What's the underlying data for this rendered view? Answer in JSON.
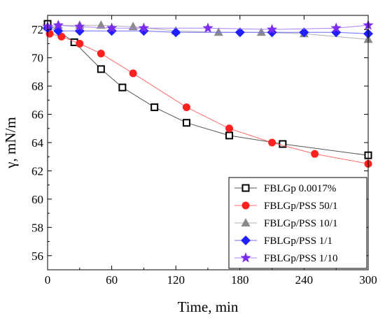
{
  "chart_data": {
    "type": "line",
    "xlabel": "Time, min",
    "ylabel": "γ, mN/m",
    "xlim": [
      0,
      300
    ],
    "ylim": [
      55,
      73
    ],
    "xticks": [
      0,
      60,
      120,
      180,
      240,
      300
    ],
    "yticks": [
      56,
      58,
      60,
      62,
      64,
      66,
      68,
      70,
      72
    ],
    "grid": false,
    "legend_position": "bottom-right",
    "series": [
      {
        "name": "FBLGp 0.0017%",
        "marker": "open-square",
        "color": "#000000",
        "line_color": "#555555",
        "x": [
          0,
          25,
          50,
          70,
          100,
          130,
          170,
          220,
          300
        ],
        "y": [
          72.4,
          71.1,
          69.2,
          67.9,
          66.5,
          65.4,
          64.5,
          63.9,
          63.1
        ]
      },
      {
        "name": "FBLGp/PSS 50/1",
        "marker": "circle",
        "color": "#ff2020",
        "line_color": "#ff6a6a",
        "x": [
          2,
          13,
          30,
          50,
          80,
          130,
          170,
          210,
          250,
          300
        ],
        "y": [
          71.7,
          71.5,
          71.0,
          70.3,
          68.9,
          66.5,
          65.0,
          64.0,
          63.2,
          62.5
        ]
      },
      {
        "name": "FBLGp/PSS 10/1",
        "marker": "triangle",
        "color": "#8a8a8a",
        "line_color": "#b0b0b0",
        "x": [
          0,
          10,
          30,
          50,
          80,
          120,
          160,
          200,
          240,
          300
        ],
        "y": [
          72.2,
          72.3,
          72.3,
          72.3,
          72.2,
          71.9,
          71.8,
          71.8,
          71.7,
          71.3
        ]
      },
      {
        "name": "FBLGp/PSS 1/1",
        "marker": "diamond",
        "color": "#1f1fff",
        "line_color": "#6a6aff",
        "x": [
          0,
          10,
          30,
          60,
          90,
          120,
          180,
          210,
          240,
          270,
          300
        ],
        "y": [
          72.1,
          71.9,
          71.9,
          71.9,
          71.9,
          71.8,
          71.8,
          71.8,
          71.8,
          71.8,
          71.7
        ]
      },
      {
        "name": "FBLGp/PSS 1/10",
        "marker": "star",
        "color": "#7b2cf0",
        "line_color": "#a880f5",
        "x": [
          0,
          10,
          30,
          60,
          90,
          150,
          210,
          270,
          300
        ],
        "y": [
          72.2,
          72.3,
          72.2,
          72.1,
          72.1,
          72.1,
          72.0,
          72.1,
          72.3
        ]
      }
    ]
  }
}
